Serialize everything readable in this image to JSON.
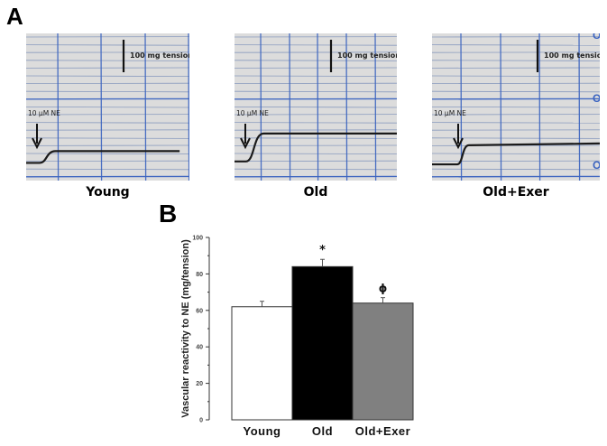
{
  "figure": {
    "panel_a_label": "A",
    "panel_b_label": "B"
  },
  "traces": {
    "scale_label": "100 mg tension",
    "stimulus_label": "10 µM NE",
    "paper_color": "#dcdcdc",
    "grid_color": "#3a63c0",
    "minor_grid_color": "#6f86b5",
    "trace_color": "#1a1a1a",
    "panels": [
      {
        "caption": "Young",
        "baseline_norm": 0.88,
        "plateau_norm": 0.8,
        "rise_start_norm": 0.08,
        "rise_end_norm": 0.18
      },
      {
        "caption": "Old",
        "baseline_norm": 0.87,
        "plateau_norm": 0.68,
        "rise_start_norm": 0.07,
        "rise_end_norm": 0.18
      },
      {
        "caption": "Old+Exer",
        "baseline_norm": 0.89,
        "plateau_norm": 0.76,
        "rise_start_norm": 0.15,
        "rise_end_norm": 0.22
      }
    ]
  },
  "chart_data": {
    "type": "bar",
    "title": "",
    "xlabel": "",
    "ylabel": "Vascular reactivity to NE (mg/tension)",
    "ylim": [
      0,
      100
    ],
    "yticks": [
      0,
      20,
      40,
      60,
      80,
      100
    ],
    "ytick_labels": [
      "0",
      "20",
      "40",
      "60",
      "80",
      "100"
    ],
    "grid": false,
    "categories": [
      "Young",
      "Old",
      "Old+Exer"
    ],
    "values": [
      62,
      84,
      64
    ],
    "errors": [
      3,
      4,
      3
    ],
    "bar_colors": [
      "#ffffff",
      "#000000",
      "#808080"
    ],
    "annotations": [
      "",
      "*",
      "ϕ"
    ]
  }
}
